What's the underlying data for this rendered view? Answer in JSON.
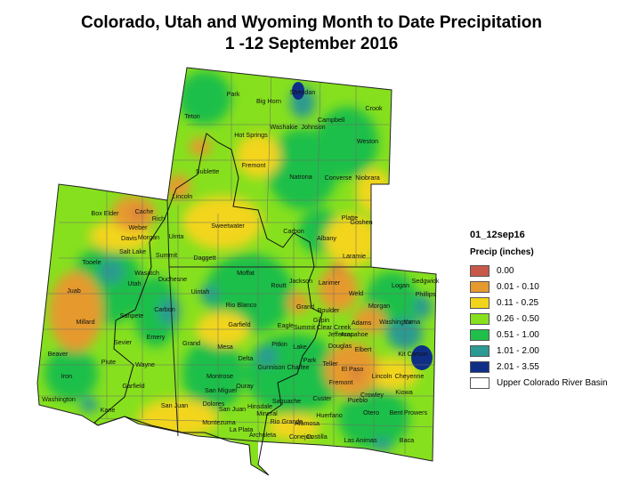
{
  "title": {
    "line1": "Colorado, Utah and Wyoming Month to Date Precipitation",
    "line2": "1 -12 September 2016"
  },
  "legend": {
    "layer_name": "01_12sep16",
    "field_label": "Precip (inches)",
    "classes": [
      {
        "label": "0.00",
        "color": "#c8584a"
      },
      {
        "label": "0.01 - 0.10",
        "color": "#e69a2e"
      },
      {
        "label": "0.11 - 0.25",
        "color": "#f2d51a"
      },
      {
        "label": "0.26 - 0.50",
        "color": "#86e01e"
      },
      {
        "label": "0.51 - 1.00",
        "color": "#1fbf4a"
      },
      {
        "label": "1.01 - 2.00",
        "color": "#2a9a92"
      },
      {
        "label": "2.01 - 3.55",
        "color": "#0f2f86"
      }
    ],
    "basin": {
      "label": "Upper Colorado River Basin",
      "color": "#ffffff"
    }
  },
  "counties": [
    "Park",
    "Sheridan",
    "Big Horn",
    "Crook",
    "Teton",
    "Campbell",
    "Washakie",
    "Johnson",
    "Hot Springs",
    "Weston",
    "Fremont",
    "Sublette",
    "Natrona",
    "Converse",
    "Niobrara",
    "Lincoln",
    "Platte",
    "Goshen",
    "Box Elder",
    "Cache",
    "Rich",
    "Sweetwater",
    "Carbon",
    "Albany",
    "Laramie",
    "Weber",
    "Morgan",
    "Davis",
    "Uinta",
    "Salt Lake",
    "Summit",
    "Daggett",
    "Tooele",
    "Wasatch",
    "Utah",
    "Duchesne",
    "Uintah",
    "Moffat",
    "Routt",
    "Jackson",
    "Larimer",
    "Logan",
    "Sedgwick",
    "Phillips",
    "Weld",
    "Juab",
    "Sanpete",
    "Carbon",
    "Rio Blanco",
    "Grand",
    "Boulder",
    "Morgan",
    "Millard",
    "Sevier",
    "Emery",
    "Garfield",
    "Eagle",
    "Summit",
    "Gilpin",
    "Clear Creek",
    "Adams",
    "Washington",
    "Yuma",
    "Jefferson",
    "Arapahoe",
    "Grand",
    "Mesa",
    "Pitkin",
    "Lake",
    "Douglas",
    "Elbert",
    "Beaver",
    "Piute",
    "Wayne",
    "Delta",
    "Gunnison",
    "Chaffee",
    "Park",
    "Teller",
    "El Paso",
    "Lincoln",
    "Kit Carson",
    "Cheyenne",
    "Iron",
    "Montrose",
    "Fremont",
    "Garfield",
    "Ouray",
    "San Miguel",
    "Custer",
    "Pueblo",
    "Crowley",
    "Kiowa",
    "Washington",
    "Kane",
    "San Juan",
    "Dolores",
    "San Juan",
    "Hinsdale",
    "Mineral",
    "Saguache",
    "Otero",
    "Bent",
    "Prowers",
    "Huerfano",
    "Montezuma",
    "La Plata",
    "Archuleta",
    "Rio Grande",
    "Alamosa",
    "Conejos",
    "Costilla",
    "Las Animas",
    "Baca"
  ]
}
